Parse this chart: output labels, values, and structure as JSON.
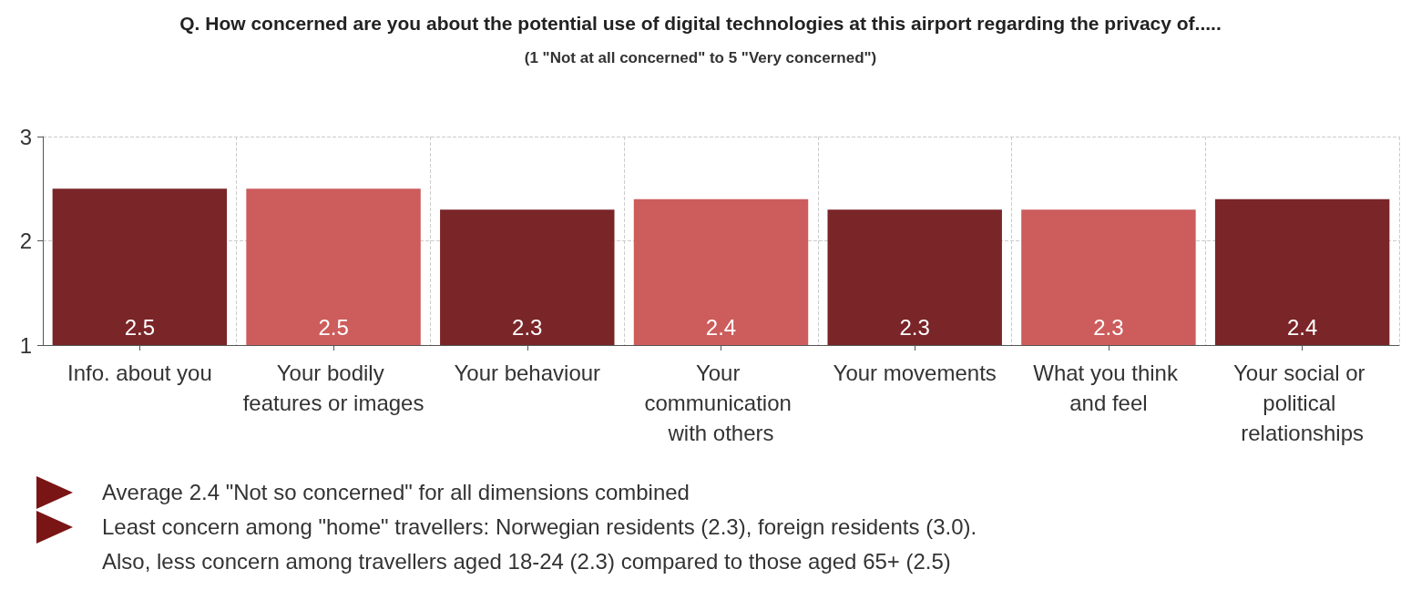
{
  "chart_data": {
    "type": "bar",
    "title": "Q. How concerned are you about the potential use of digital technologies at this airport regarding the privacy of.....",
    "subtitle": "(1 \"Not at all concerned\" to 5 \"Very concerned\")",
    "categories": [
      "Info. about you",
      "Your bodily features or images",
      "Your behaviour",
      "Your communication with others",
      "Your movements",
      "What you think and feel",
      "Your social or political relationships"
    ],
    "values": [
      2.5,
      2.5,
      2.3,
      2.4,
      2.3,
      2.3,
      2.4
    ],
    "colors": [
      "#7a2528",
      "#cd5c5c",
      "#7a2528",
      "#cd5c5c",
      "#7a2528",
      "#cd5c5c",
      "#7a2528"
    ],
    "ylim": [
      1,
      3
    ],
    "yticks": [
      1,
      2,
      3
    ],
    "grid": true,
    "data_labels": true,
    "annotations": [
      "Average 2.4 \"Not so concerned\" for all dimensions combined",
      "Least concern among \"home\" travellers: Norwegian residents (2.3), foreign residents (3.0).",
      "Also, less concern among travellers aged 18-24 (2.3) compared to those aged 65+ (2.5)"
    ]
  }
}
